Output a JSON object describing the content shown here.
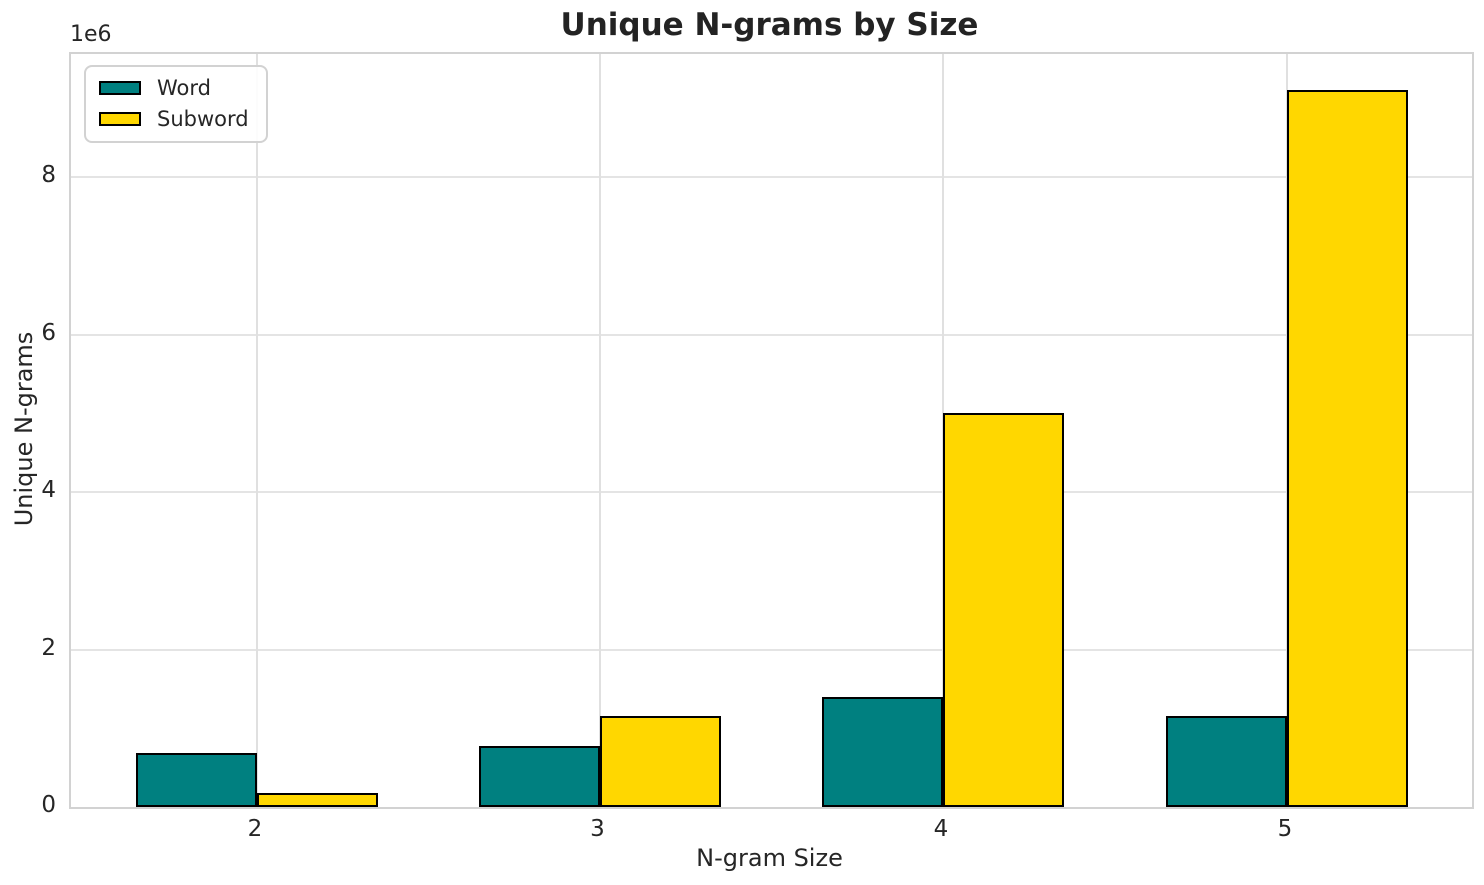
{
  "chart_data": {
    "type": "bar",
    "title": "Unique N-grams by Size",
    "xlabel": "N-gram Size",
    "ylabel": "Unique N-grams",
    "y_offset_label": "1e6",
    "categories": [
      "2",
      "3",
      "4",
      "5"
    ],
    "series": [
      {
        "name": "Word",
        "color": "#008080",
        "values": [
          680000,
          770000,
          1400000,
          1150000
        ]
      },
      {
        "name": "Subword",
        "color": "#FFD700",
        "values": [
          180000,
          1160000,
          5000000,
          9100000
        ]
      }
    ],
    "bar_edge_color": "#000000",
    "y_ticks": [
      "0",
      "2",
      "4",
      "6",
      "8"
    ],
    "y_tick_values": [
      0,
      2000000,
      4000000,
      6000000,
      8000000
    ],
    "ylim": [
      0,
      9560000
    ],
    "grid": true,
    "legend_position": "upper left"
  }
}
